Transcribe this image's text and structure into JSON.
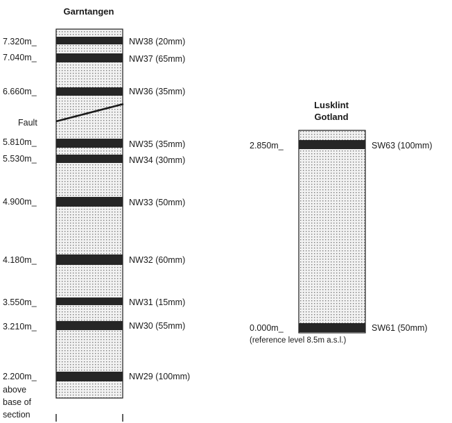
{
  "sections": [
    {
      "title_lines": [
        "Garntangen"
      ],
      "layers": [
        {
          "height": "7.320m_",
          "label": "NW38 (20mm)"
        },
        {
          "height": "7.040m_",
          "label": "NW37 (65mm)"
        },
        {
          "height": "6.660m_",
          "label": "NW36 (35mm)"
        },
        {
          "height": "5.810m_",
          "label": "NW35 (35mm)"
        },
        {
          "height": "5.530m_",
          "label": "NW34 (30mm)"
        },
        {
          "height": "4.900m_",
          "label": "NW33 (50mm)"
        },
        {
          "height": "4.180m_",
          "label": "NW32 (60mm)"
        },
        {
          "height": "3.550m_",
          "label": "NW31 (15mm)"
        },
        {
          "height": "3.210m_",
          "label": "NW30 (55mm)"
        },
        {
          "height": "2.200m_",
          "label": "NW29 (100mm)"
        }
      ],
      "fault_label": "Fault",
      "base_note": [
        "above",
        "base of",
        "section"
      ]
    },
    {
      "title_lines": [
        "Lusklint",
        "Gotland"
      ],
      "layers": [
        {
          "height": "2.850m_",
          "label": "SW63 (100mm)"
        },
        {
          "height": "0.000m_",
          "label": "SW61 (50mm)"
        }
      ],
      "reference_note": "(reference level  8.5m a.s.l.)"
    }
  ],
  "colors": {
    "band": "#262626",
    "stipple_dot": "#7a7a7a",
    "column_fill": "#f2f2f2",
    "line": "#1a1a1a"
  }
}
